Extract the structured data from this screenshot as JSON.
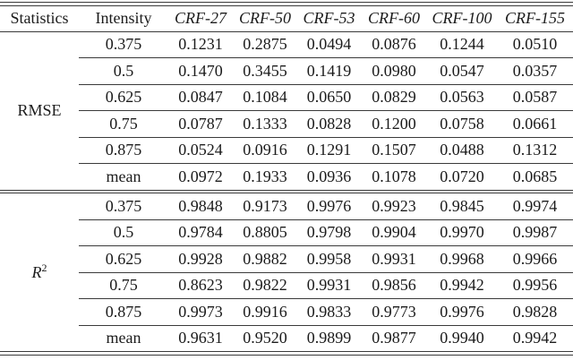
{
  "page": {
    "background": "#ffffff",
    "text_color": "#1b1b1b",
    "rule_color": "#3a3a3a"
  },
  "chart_data": {
    "type": "table",
    "headers": [
      "Statistics",
      "Intensity",
      "CRF-27",
      "CRF-50",
      "CRF-53",
      "CRF-60",
      "CRF-100",
      "CRF-155"
    ],
    "header_italic_from_col": 2,
    "sections": [
      {
        "label": "RMSE",
        "label_sup": "",
        "rows": [
          {
            "intensity": "0.375",
            "values": [
              "0.1231",
              "0.2875",
              "0.0494",
              "0.0876",
              "0.1244",
              "0.0510"
            ]
          },
          {
            "intensity": "0.5",
            "values": [
              "0.1470",
              "0.3455",
              "0.1419",
              "0.0980",
              "0.0547",
              "0.0357"
            ]
          },
          {
            "intensity": "0.625",
            "values": [
              "0.0847",
              "0.1084",
              "0.0650",
              "0.0829",
              "0.0563",
              "0.0587"
            ]
          },
          {
            "intensity": "0.75",
            "values": [
              "0.0787",
              "0.1333",
              "0.0828",
              "0.1200",
              "0.0758",
              "0.0661"
            ]
          },
          {
            "intensity": "0.875",
            "values": [
              "0.0524",
              "0.0916",
              "0.1291",
              "0.1507",
              "0.0488",
              "0.1312"
            ]
          },
          {
            "intensity": "mean",
            "values": [
              "0.0972",
              "0.1933",
              "0.0936",
              "0.1078",
              "0.0720",
              "0.0685"
            ]
          }
        ]
      },
      {
        "label": "R",
        "label_sup": "2",
        "rows": [
          {
            "intensity": "0.375",
            "values": [
              "0.9848",
              "0.9173",
              "0.9976",
              "0.9923",
              "0.9845",
              "0.9974"
            ]
          },
          {
            "intensity": "0.5",
            "values": [
              "0.9784",
              "0.8805",
              "0.9798",
              "0.9904",
              "0.9970",
              "0.9987"
            ]
          },
          {
            "intensity": "0.625",
            "values": [
              "0.9928",
              "0.9882",
              "0.9958",
              "0.9931",
              "0.9968",
              "0.9966"
            ]
          },
          {
            "intensity": "0.75",
            "values": [
              "0.8623",
              "0.9822",
              "0.9931",
              "0.9856",
              "0.9942",
              "0.9956"
            ]
          },
          {
            "intensity": "0.875",
            "values": [
              "0.9973",
              "0.9916",
              "0.9833",
              "0.9773",
              "0.9976",
              "0.9828"
            ]
          },
          {
            "intensity": "mean",
            "values": [
              "0.9631",
              "0.9520",
              "0.9899",
              "0.9877",
              "0.9940",
              "0.9942"
            ]
          }
        ]
      }
    ]
  }
}
